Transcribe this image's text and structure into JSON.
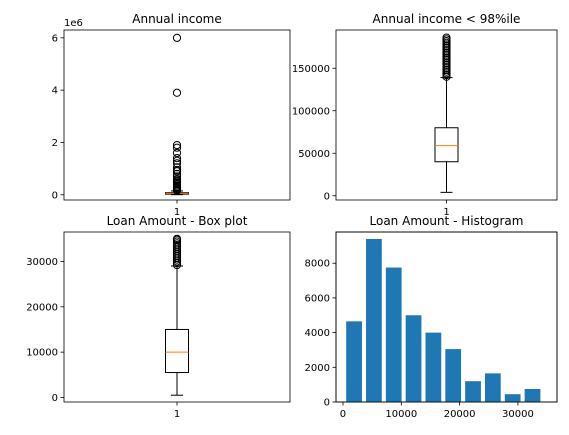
{
  "chart_data": [
    {
      "type": "box",
      "title": "Annual income",
      "categories": [
        "1"
      ],
      "ylim": [
        -200000,
        6300000
      ],
      "yticks": [
        0,
        2000000,
        4000000,
        6000000
      ],
      "ytick_labels": [
        "0",
        "2",
        "4",
        "6"
      ],
      "y_offset_label": "1e6",
      "box": {
        "whisker_low": 4000,
        "q1": 40000,
        "median": 59000,
        "q3": 82000,
        "whisker_high": 145000
      },
      "outliers": [
        6000000,
        3900000,
        1900000,
        1800000,
        1600000,
        1400000,
        1300000,
        1200000,
        1050000,
        950000,
        900000,
        800000,
        700000,
        600000,
        550000,
        500000,
        450000,
        400000,
        350000,
        300000,
        260000,
        230000,
        200000,
        180000,
        160000
      ]
    },
    {
      "type": "box",
      "title": "Annual income < 98%ile",
      "categories": [
        "1"
      ],
      "ylim": [
        -5000,
        195000
      ],
      "yticks": [
        0,
        50000,
        100000,
        150000
      ],
      "ytick_labels": [
        "0",
        "50000",
        "100000",
        "150000"
      ],
      "box": {
        "whisker_low": 4000,
        "q1": 40000,
        "median": 59000,
        "q3": 80000,
        "whisker_high": 139000
      },
      "outliers": [
        140000,
        142000,
        144000,
        146000,
        148000,
        150000,
        152000,
        154000,
        156000,
        158000,
        160000,
        162000,
        164000,
        166000,
        168000,
        170000,
        172000,
        174000,
        176000,
        178000,
        180000,
        182000,
        184000,
        186000
      ]
    },
    {
      "type": "box",
      "title": "Loan Amount - Box plot",
      "categories": [
        "1"
      ],
      "ylim": [
        -1000,
        36500
      ],
      "yticks": [
        0,
        10000,
        20000,
        30000
      ],
      "ytick_labels": [
        "0",
        "10000",
        "20000",
        "30000"
      ],
      "box": {
        "whisker_low": 500,
        "q1": 5500,
        "median": 10000,
        "q3": 15000,
        "whisker_high": 29000
      },
      "outliers": [
        29200,
        29600,
        30000,
        30400,
        30800,
        31200,
        31600,
        32000,
        32400,
        32800,
        33200,
        33600,
        34000,
        34400,
        34800,
        35000
      ]
    },
    {
      "type": "histogram",
      "title": "Loan Amount - Histogram",
      "xlim": [
        -1200,
        36700
      ],
      "ylim": [
        0,
        9800
      ],
      "xticks": [
        0,
        10000,
        20000,
        30000
      ],
      "xtick_labels": [
        "0",
        "10000",
        "20000",
        "30000"
      ],
      "yticks": [
        0,
        2000,
        4000,
        6000,
        8000
      ],
      "ytick_labels": [
        "0",
        "2000",
        "4000",
        "6000",
        "8000"
      ],
      "bar_color": "#1f77b4",
      "bins": [
        {
          "x": 1900,
          "value": 4650
        },
        {
          "x": 5300,
          "value": 9400
        },
        {
          "x": 8700,
          "value": 7750
        },
        {
          "x": 12100,
          "value": 5000
        },
        {
          "x": 15500,
          "value": 4000
        },
        {
          "x": 18900,
          "value": 3050
        },
        {
          "x": 22300,
          "value": 1200
        },
        {
          "x": 25700,
          "value": 1650
        },
        {
          "x": 29100,
          "value": 450
        },
        {
          "x": 32500,
          "value": 750
        }
      ],
      "bar_width": 2700
    }
  ],
  "style": {
    "box_color": "#000000",
    "median_color": "#ff7f0e"
  }
}
